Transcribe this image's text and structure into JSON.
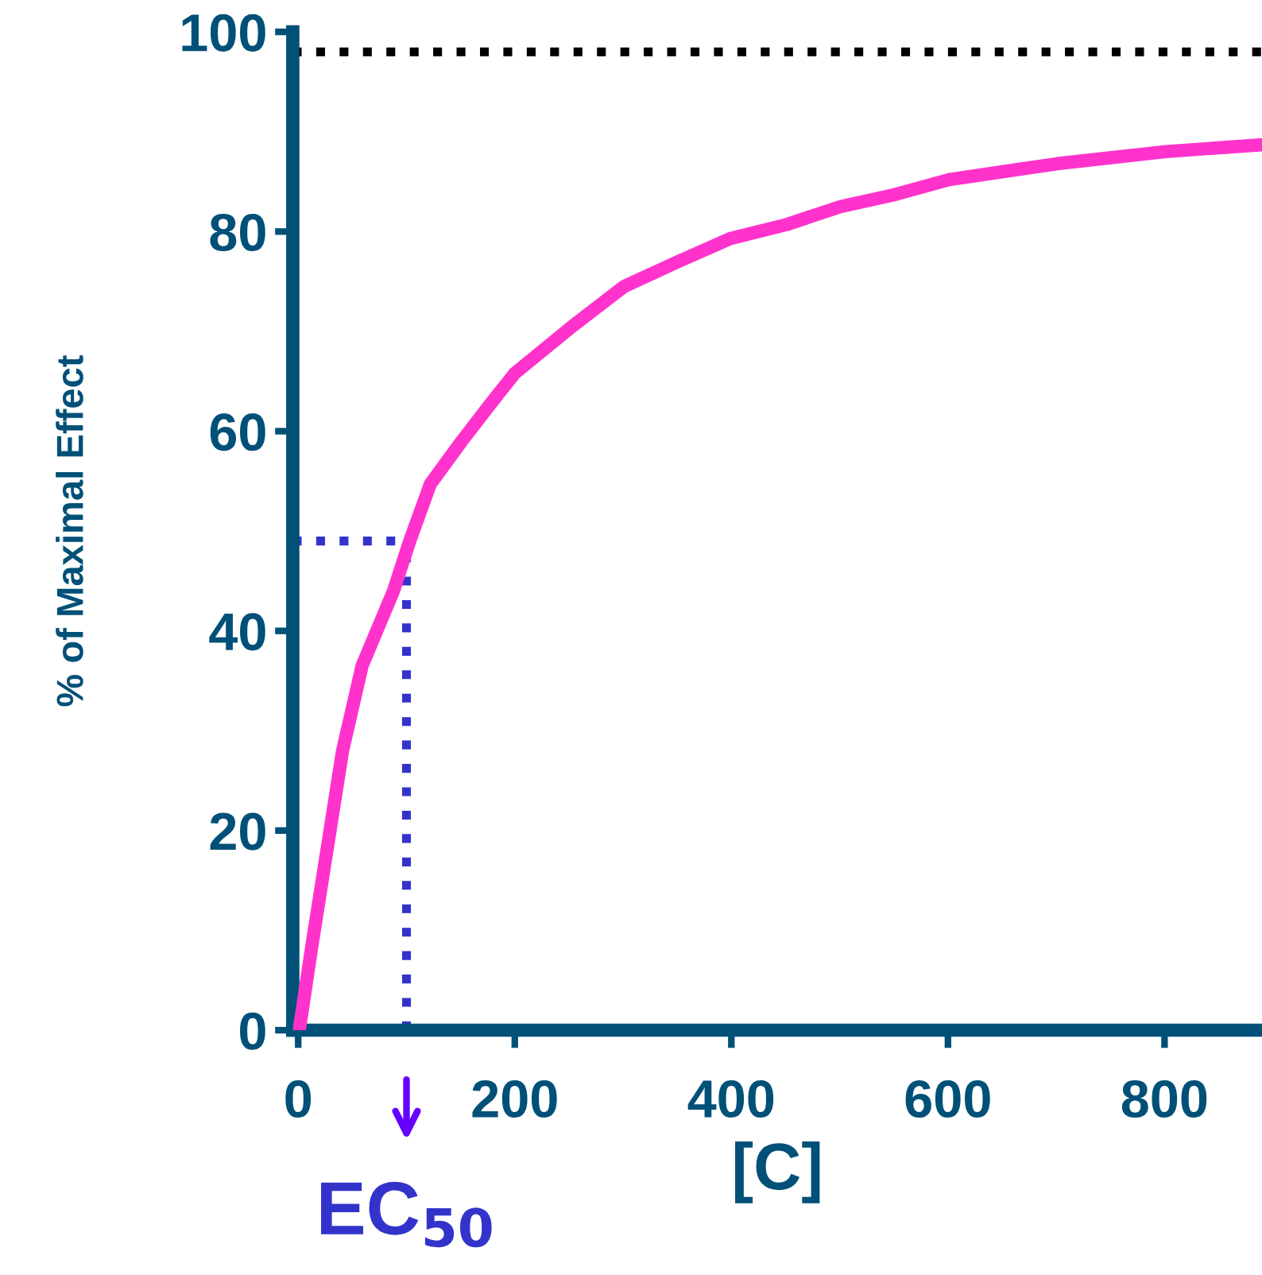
{
  "chart_data": {
    "type": "line",
    "xlabel": "[C]",
    "ylabel": "% of Maximal Effect",
    "xlim": [
      -5,
      890
    ],
    "ylim": [
      0,
      100
    ],
    "xticks": [
      0,
      200,
      400,
      600,
      800
    ],
    "yticks": [
      0,
      20,
      40,
      60,
      80,
      100
    ],
    "grid": false,
    "marker": "none",
    "line_style": "solid",
    "series": [
      {
        "color": "#ff33cc",
        "x": [
          1,
          12,
          41,
          59,
          88,
          103,
          122,
          151,
          178,
          200,
          253,
          301,
          351,
          399,
          451,
          501,
          551,
          601,
          701,
          801,
          890
        ],
        "values": [
          0,
          8,
          28,
          36.5,
          44,
          49,
          54.7,
          59,
          62.8,
          65.8,
          70.5,
          74.5,
          77,
          79.3,
          80.7,
          82.5,
          83.7,
          85.2,
          86.8,
          88,
          88.7
        ]
      }
    ],
    "ref_lines": [
      {
        "axis": "y",
        "value": 98,
        "color": "#000000",
        "line_style": "dotted"
      },
      {
        "axis": "y",
        "value": 49,
        "color": "#3333cc",
        "line_style": "dotted"
      },
      {
        "axis": "x",
        "value": 100,
        "label": "EC$_{50}$",
        "color": "#3333cc",
        "line_style": "dotted"
      }
    ]
  }
}
